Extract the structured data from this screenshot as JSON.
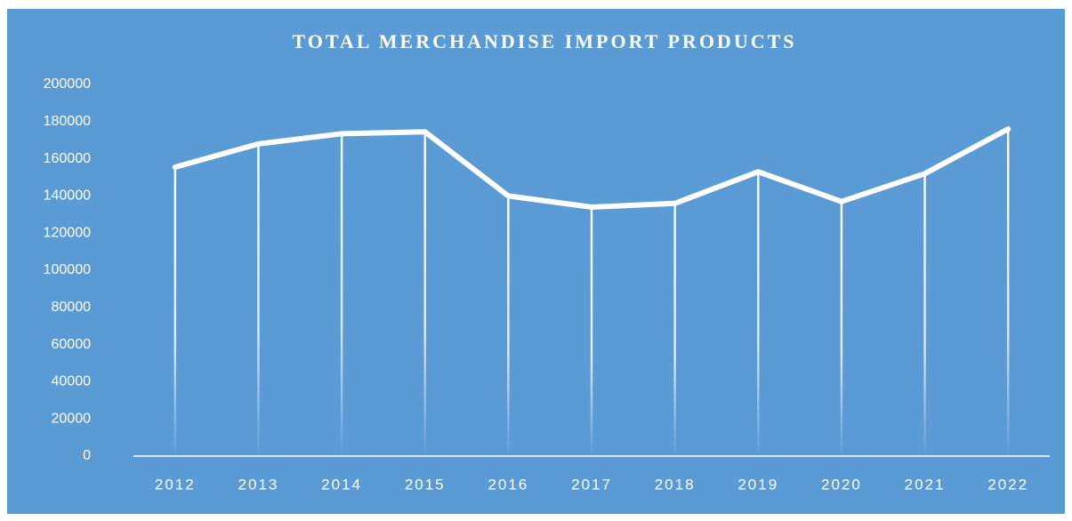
{
  "chart_data": {
    "type": "line",
    "title": "TOTAL MERCHANDISE IMPORT PRODUCTS",
    "categories": [
      "2012",
      "2013",
      "2014",
      "2015",
      "2016",
      "2017",
      "2018",
      "2019",
      "2020",
      "2021",
      "2022"
    ],
    "values": [
      155500,
      168000,
      173500,
      174500,
      140000,
      134000,
      136000,
      153000,
      137000,
      152000,
      176000
    ],
    "color": "#ffffff",
    "background": "#5b9bd5",
    "drop_lines": true,
    "grid": false,
    "ylim": [
      0,
      200000
    ],
    "yticks": [
      0,
      20000,
      40000,
      60000,
      80000,
      100000,
      120000,
      140000,
      160000,
      180000,
      200000
    ]
  }
}
